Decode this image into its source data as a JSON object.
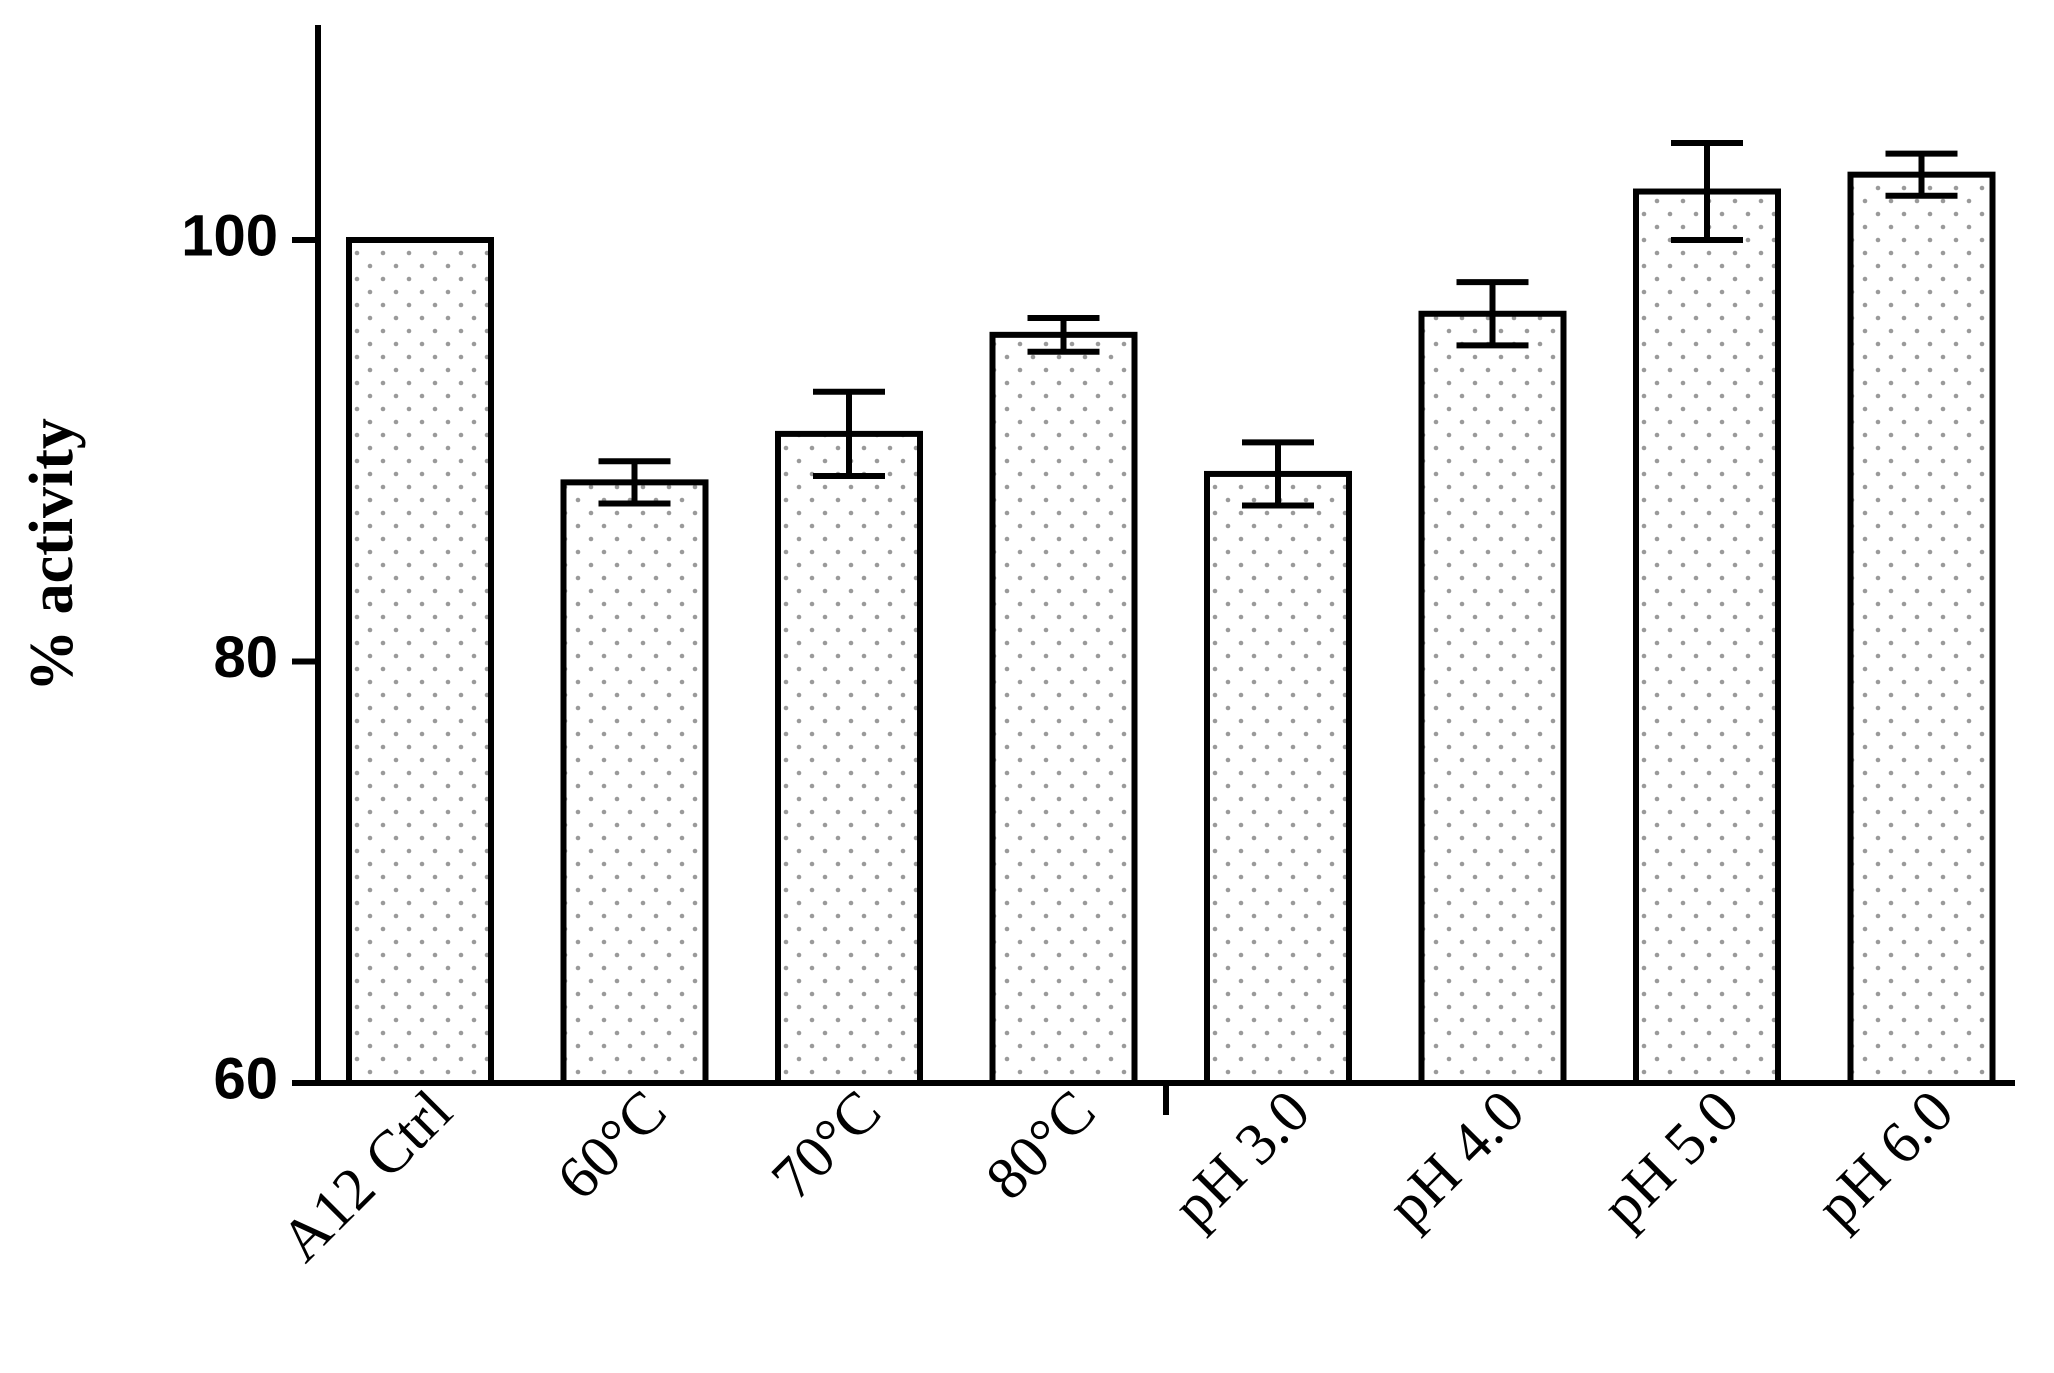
{
  "chart_data": {
    "type": "bar",
    "ylabel": "% activity",
    "xlabel": "",
    "ylim": [
      60,
      110
    ],
    "yticks": [
      60,
      80,
      100
    ],
    "grid": false,
    "legend": "none",
    "categories": [
      "A12 Ctrl",
      "60°C",
      "70°C",
      "80°C",
      "pH 3.0",
      "pH 4.0",
      "pH 5.0",
      "pH 6.0"
    ],
    "values": [
      100,
      88.5,
      90.8,
      95.5,
      88.9,
      96.5,
      102.3,
      103.1
    ],
    "error": [
      0,
      1.0,
      2.0,
      0.8,
      1.5,
      1.5,
      2.3,
      1.0
    ],
    "bar_fill": "#ffffff",
    "bar_dot_color": "#9a9a9a",
    "bar_stroke": "#000000"
  }
}
